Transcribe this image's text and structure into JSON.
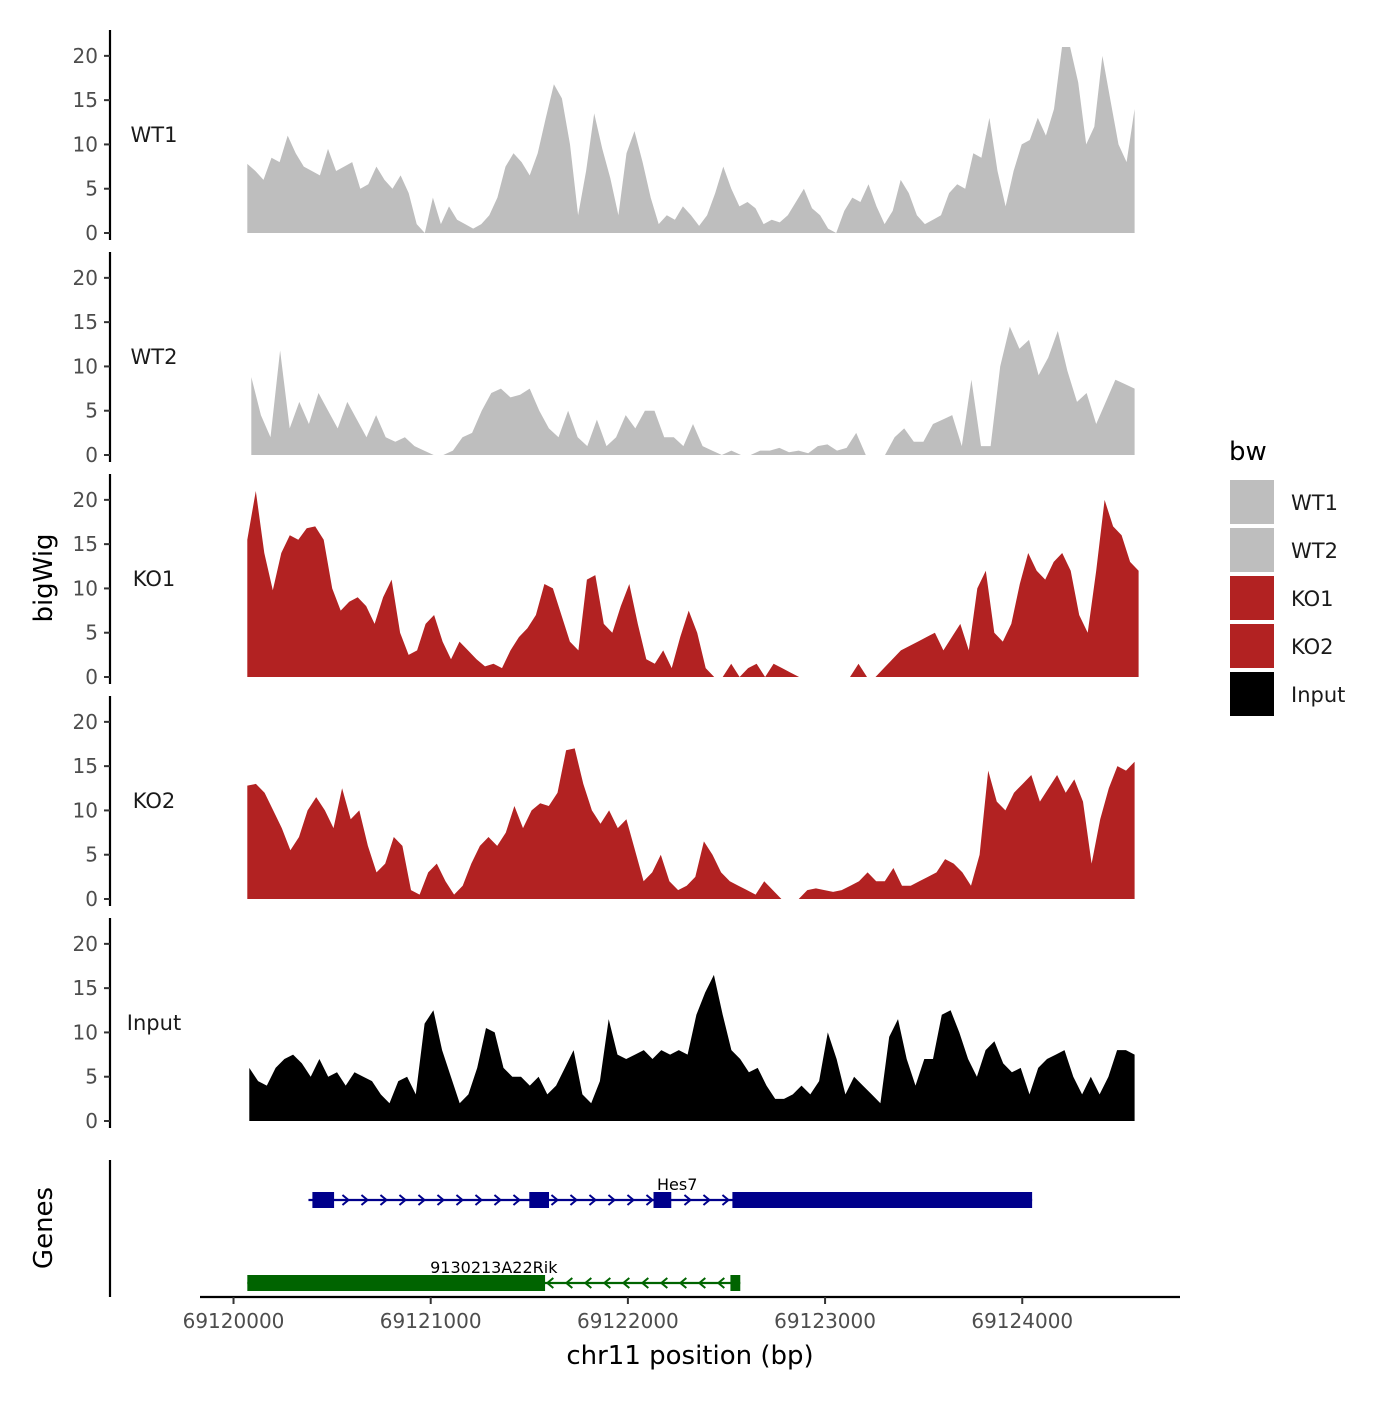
{
  "chart_data": {
    "type": "area",
    "ylabel": "bigWig",
    "xlabel": "chr11 position (bp)",
    "gene_track_label": "Genes",
    "xlim": [
      69119830,
      69124800
    ],
    "x_ticks": [
      69120000,
      69121000,
      69122000,
      69123000,
      69124000
    ],
    "x_tick_labels": [
      "69120000",
      "69121000",
      "69122000",
      "69123000",
      "69124000"
    ],
    "ylim": [
      0,
      22
    ],
    "y_ticks": [
      0,
      5,
      10,
      15,
      20
    ],
    "y_tick_labels": [
      "0",
      "5",
      "10",
      "15",
      "20"
    ],
    "legend": {
      "title": "bw",
      "entries": [
        {
          "name": "WT1",
          "color": "#bebebe"
        },
        {
          "name": "WT2",
          "color": "#bebebe"
        },
        {
          "name": "KO1",
          "color": "#b22222"
        },
        {
          "name": "KO2",
          "color": "#b22222"
        },
        {
          "name": "Input",
          "color": "#000000"
        }
      ]
    },
    "series": [
      {
        "name": "WT1",
        "color": "#bebebe",
        "x_start": 69120070,
        "x_end": 69124570,
        "values": [
          7.8,
          7,
          6,
          8.5,
          8,
          11,
          9,
          7.5,
          7,
          6.5,
          9.5,
          7,
          7.5,
          8,
          5,
          5.5,
          7.5,
          6,
          5,
          6.5,
          4.5,
          1,
          0,
          4,
          1,
          3,
          1.5,
          1,
          0.5,
          1,
          2,
          4,
          7.5,
          9,
          8,
          6.5,
          9,
          13,
          16.8,
          15.2,
          10,
          2,
          7,
          13.5,
          9.5,
          6.2,
          2,
          9,
          11.5,
          8,
          4,
          1,
          2,
          1.5,
          3,
          2,
          0.8,
          2,
          4.5,
          7.5,
          5,
          3,
          3.5,
          2.8,
          1,
          1.5,
          1.2,
          2,
          3.5,
          5,
          2.8,
          2,
          0.5,
          0,
          2.5,
          4,
          3.5,
          5.5,
          3,
          1,
          2.5,
          6,
          4.5,
          2,
          1,
          1.5,
          2,
          4.5,
          5.5,
          5,
          9,
          8.5,
          13,
          7,
          3,
          7,
          10,
          10.5,
          13,
          11,
          14,
          21,
          21,
          17,
          10,
          12,
          20,
          15,
          10,
          8,
          14
        ]
      },
      {
        "name": "WT2",
        "color": "#bebebe",
        "x_start": 69120090,
        "x_end": 69124570,
        "values": [
          8.8,
          4.5,
          2,
          11.8,
          3,
          6,
          3.5,
          7,
          5,
          3,
          6,
          4,
          2,
          4.5,
          2,
          1.5,
          2,
          1,
          0.5,
          0,
          0,
          0.5,
          2,
          2.5,
          5,
          7,
          7.5,
          6.5,
          6.8,
          7.5,
          5,
          3,
          2,
          5,
          2,
          1,
          4,
          1,
          2,
          4.5,
          3,
          5,
          5,
          2,
          2,
          1,
          3.5,
          1,
          0.5,
          0,
          0.5,
          0,
          0,
          0.5,
          0.5,
          0.8,
          0.3,
          0.5,
          0.2,
          1,
          1.2,
          0.5,
          0.8,
          2.5,
          0,
          0,
          0,
          2,
          3,
          1.5,
          1.5,
          3.5,
          4,
          4.5,
          1,
          8.5,
          1,
          1,
          10,
          14.5,
          12,
          13,
          9,
          11,
          14,
          9.5,
          6,
          7,
          3.5,
          6,
          8.5,
          8,
          7.5
        ]
      },
      {
        "name": "KO1",
        "color": "#b22222",
        "x_start": 69120070,
        "x_end": 69124590,
        "values": [
          15.5,
          21,
          14,
          9.8,
          14,
          16,
          15.5,
          16.8,
          17,
          15.5,
          10,
          7.5,
          8.5,
          9,
          8,
          6,
          9,
          11,
          5,
          2.5,
          3,
          6,
          7,
          4,
          2,
          4,
          3,
          2,
          1.2,
          1.5,
          1,
          3,
          4.5,
          5.5,
          7,
          10.5,
          10,
          7,
          4,
          3,
          11,
          11.5,
          6,
          5,
          8,
          10.5,
          6,
          2,
          1.5,
          3,
          1,
          4.5,
          7.5,
          5,
          1,
          0,
          0,
          1.5,
          0,
          1,
          1.5,
          0,
          1.5,
          1,
          0.5,
          0,
          0,
          0,
          0,
          0,
          0,
          0,
          1.5,
          0,
          0,
          1,
          2,
          3,
          3.5,
          4,
          4.5,
          5,
          3,
          4.5,
          6,
          3,
          10,
          12,
          5,
          4,
          6,
          10.5,
          14,
          12,
          11,
          13,
          14,
          12,
          7,
          5,
          12,
          20,
          17,
          16,
          13,
          12
        ]
      },
      {
        "name": "KO2",
        "color": "#b22222",
        "x_start": 69120070,
        "x_end": 69124570,
        "values": [
          12.8,
          13,
          12,
          10,
          8,
          5.5,
          7,
          10,
          11.5,
          10,
          8,
          12.5,
          9,
          10,
          6,
          3,
          4,
          7,
          6,
          1,
          0.5,
          3,
          4,
          2,
          0.5,
          1.5,
          4,
          6,
          7,
          6,
          7.5,
          10.5,
          8,
          10,
          10.8,
          10.5,
          12,
          16.8,
          17,
          13,
          10,
          8.5,
          10,
          8,
          9,
          5.5,
          2,
          3,
          5,
          2,
          1,
          1.5,
          2.5,
          6.5,
          5,
          3,
          2,
          1.5,
          1,
          0.5,
          2,
          1,
          0,
          0,
          0,
          1,
          1.2,
          1,
          0.8,
          1,
          1.5,
          2,
          3,
          2,
          2,
          3.5,
          1.5,
          1.5,
          2,
          2.5,
          3,
          4.5,
          4,
          3,
          1.5,
          5,
          14.5,
          11,
          10,
          12,
          13,
          14,
          11,
          12.5,
          14,
          12,
          13.5,
          11,
          4,
          9,
          12.5,
          15,
          14.5,
          15.5
        ]
      },
      {
        "name": "Input",
        "color": "#000000",
        "x_start": 69120080,
        "x_end": 69124570,
        "values": [
          6,
          4.5,
          4,
          6,
          7,
          7.5,
          6.5,
          5,
          7,
          5,
          5.5,
          4,
          5.5,
          5,
          4.5,
          3,
          2,
          4.5,
          5,
          3,
          11,
          12.5,
          8,
          5,
          2,
          3,
          6,
          10.5,
          10,
          6,
          5,
          5,
          4,
          5,
          3,
          4,
          6,
          8,
          3,
          2,
          4.5,
          11.5,
          7.5,
          7,
          7.5,
          8,
          7,
          8,
          7.5,
          8,
          7.5,
          12,
          14.5,
          16.5,
          12,
          8,
          7,
          5.5,
          6,
          4,
          2.5,
          2.5,
          3,
          4,
          3,
          4.5,
          10,
          7,
          3,
          5,
          4,
          3,
          2,
          9.5,
          11.5,
          7,
          4,
          7,
          7,
          12,
          12.5,
          10,
          7,
          5,
          8,
          9,
          6.5,
          5.5,
          6,
          3,
          6,
          7,
          7.5,
          8,
          5,
          3,
          5,
          3,
          5,
          8,
          8,
          7.5
        ]
      }
    ],
    "genes": [
      {
        "name": "Hes7",
        "color": "#00008b",
        "strand": "+",
        "track": 1,
        "start": 69120380,
        "end": 69124050,
        "exons": [
          [
            69120400,
            69120510
          ],
          [
            69121500,
            69121600
          ],
          [
            69122130,
            69122220
          ],
          [
            69122530,
            69124050
          ]
        ]
      },
      {
        "name": "9130213A22Rik",
        "color": "#006400",
        "strand": "-",
        "track": 2,
        "start": 69120070,
        "end": 69122570,
        "exons": [
          [
            69120070,
            69121580
          ],
          [
            69122520,
            69122570
          ]
        ]
      }
    ]
  }
}
